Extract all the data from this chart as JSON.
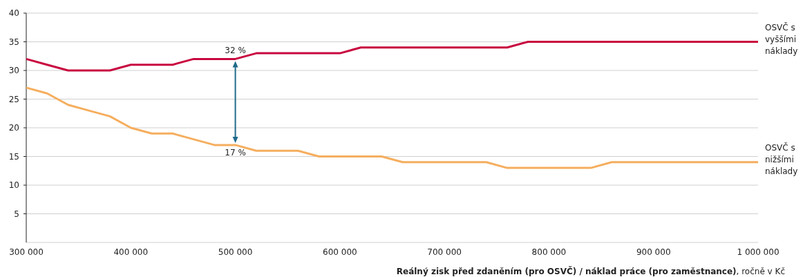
{
  "chart_data": {
    "type": "line",
    "x": [
      300000,
      320000,
      340000,
      360000,
      380000,
      400000,
      420000,
      440000,
      460000,
      480000,
      500000,
      520000,
      540000,
      560000,
      580000,
      600000,
      620000,
      640000,
      660000,
      680000,
      700000,
      720000,
      740000,
      760000,
      780000,
      800000,
      820000,
      840000,
      860000,
      880000,
      900000,
      920000,
      940000,
      960000,
      980000,
      1000000
    ],
    "series": [
      {
        "name": "OSVČ s vyššími náklady",
        "color": "#c8063f",
        "values": [
          32,
          31,
          30,
          30,
          30,
          31,
          31,
          31,
          32,
          32,
          32,
          33,
          33,
          33,
          33,
          33,
          34,
          34,
          34,
          34,
          34,
          34,
          34,
          34,
          35,
          35,
          35,
          35,
          35,
          35,
          35,
          35,
          35,
          35,
          35,
          35
        ]
      },
      {
        "name": "OSVČ s nižšími náklady",
        "color": "#f5ae5e",
        "values": [
          27,
          26,
          24,
          23,
          22,
          20,
          19,
          19,
          18,
          17,
          17,
          16,
          16,
          16,
          15,
          15,
          15,
          15,
          14,
          14,
          14,
          14,
          14,
          13,
          13,
          13,
          13,
          13,
          14,
          14,
          14,
          14,
          14,
          14,
          14,
          14
        ]
      }
    ],
    "xlim": [
      300000,
      1000000
    ],
    "xticks": [
      {
        "value": 300000,
        "label": "300 000"
      },
      {
        "value": 400000,
        "label": "400 000"
      },
      {
        "value": 500000,
        "label": "500 000"
      },
      {
        "value": 600000,
        "label": "600 000"
      },
      {
        "value": 700000,
        "label": "700 000"
      },
      {
        "value": 800000,
        "label": "800 000"
      },
      {
        "value": 900000,
        "label": "900 000"
      },
      {
        "value": 1000000,
        "label": "1 000 000"
      }
    ],
    "ylim": [
      0,
      40
    ],
    "yticks": [
      5,
      10,
      15,
      20,
      25,
      30,
      35,
      40
    ],
    "xlabel": "Reálný zisk před zdaněním (pro OSVČ) / náklad práce (pro zaměstnance), ročně v Kč",
    "annotations": [
      {
        "text": "32 %",
        "x": 500000,
        "y": 32
      },
      {
        "text": "17 %",
        "x": 500000,
        "y": 17
      }
    ],
    "grid": "y",
    "marker": "none",
    "line_style": "solid"
  }
}
